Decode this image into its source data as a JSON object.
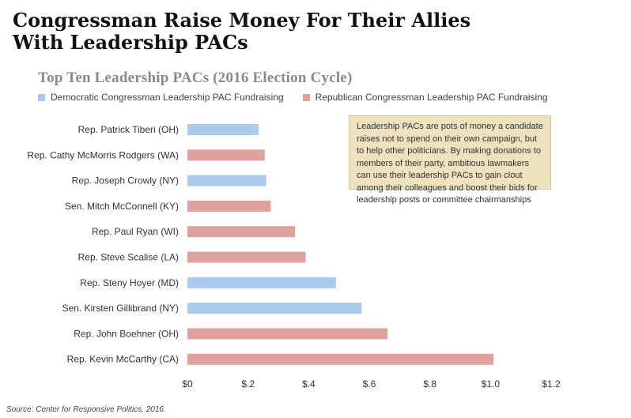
{
  "title_line1": "Congressman Raise Money For Their Allies",
  "title_line2": "With Leadership PACs",
  "colors": {
    "democratic": "#aacbec",
    "republican": "#dfa29d",
    "note_bg": "#efe2bf"
  },
  "note": "Leadership PACs are pots of money a candidate raises not to spend on their own campaign, but to help other politicians. By making donations to members of their party, ambitious lawmakers can use their leadership PACs to gain clout among their colleagues and boost their bids for leadership posts or committee chairmanships",
  "source": "Source: Center for Responsive Politics, 2016.",
  "chart_data": {
    "type": "bar",
    "orientation": "horizontal",
    "title": "Top Ten Leadership PACs (2016 Election Cycle)",
    "xlim": [
      0,
      1.2
    ],
    "grid": false,
    "legend_position": "top-left",
    "ticks": [
      0,
      0.2,
      0.4,
      0.6,
      0.8,
      1.0,
      1.2
    ],
    "tick_labels": [
      "$0",
      "$.2",
      "$.4",
      "$.6",
      "$.8",
      "$1.0",
      "$1.2"
    ],
    "series": [
      {
        "name": "Democratic Congressman Leadership PAC Fundraising",
        "party": "democratic"
      },
      {
        "name": "Republican Congressman Leadership PAC Fundraising",
        "party": "republican"
      }
    ],
    "categories": [
      "Rep. Patrick Tiberi (OH)",
      "Rep. Cathy McMorris Rodgers (WA)",
      "Rep. Joseph Crowly (NY)",
      "Sen. Mitch McConnell (KY)",
      "Rep. Paul Ryan (WI)",
      "Rep. Steve Scalise (LA)",
      "Rep. Steny Hoyer (MD)",
      "Sen. Kirsten Gillibrand (NY)",
      "Rep. John Boehner (OH)",
      "Rep. Kevin McCarthy (CA)"
    ],
    "values": [
      0.235,
      0.255,
      0.26,
      0.275,
      0.355,
      0.39,
      0.49,
      0.575,
      0.66,
      1.01
    ],
    "party": [
      "democratic",
      "republican",
      "democratic",
      "republican",
      "republican",
      "republican",
      "democratic",
      "democratic",
      "republican",
      "republican"
    ]
  }
}
